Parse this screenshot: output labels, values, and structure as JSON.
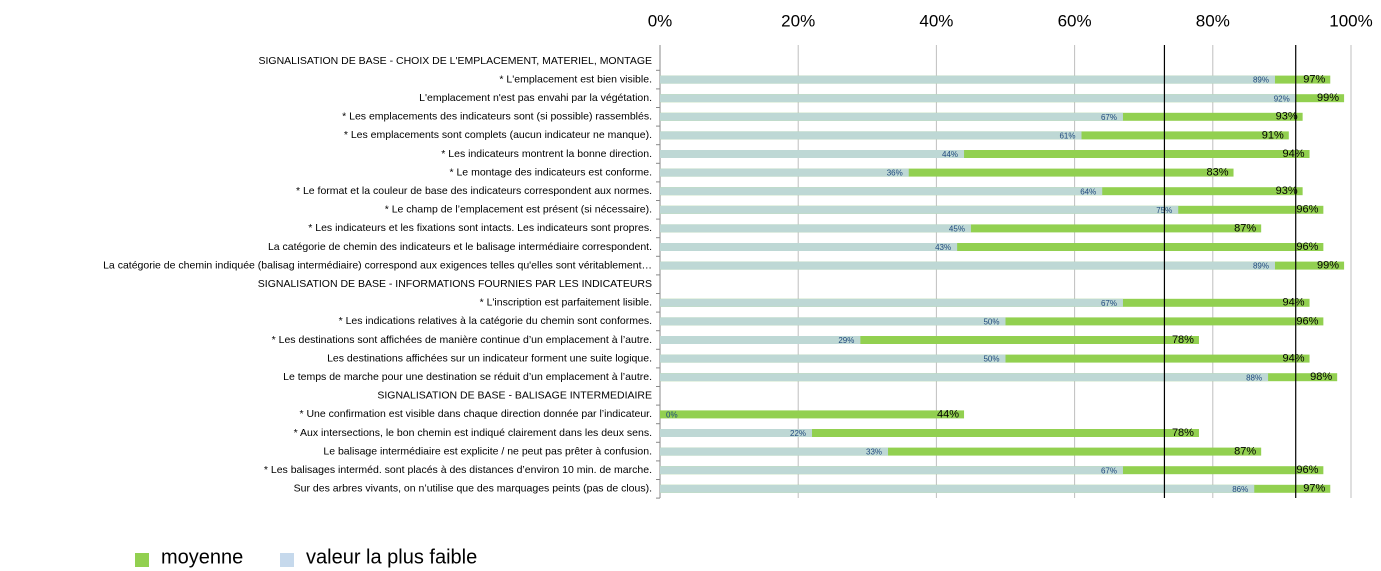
{
  "chart_data": {
    "type": "overlay_bar",
    "categories": [
      "SIGNALISATION DE BASE - CHOIX DE L'EMPLACEMENT, MATERIEL, MONTAGE",
      "* L'emplacement est bien visible.",
      "L'emplacement n'est pas envahi par la végétation.",
      "* Les emplacements des indicateurs sont (si possible) rassemblés.",
      "* Les emplacements sont complets (aucun indicateur ne manque).",
      "* Les indicateurs montrent la bonne direction.",
      "* Le montage des indicateurs est conforme.",
      "* Le format et la couleur de base des indicateurs correspondent aux normes.",
      "* Le champ de l’emplacement est présent (si nécessaire).",
      "* Les indicateurs et les fixations sont intacts. Les indicateurs sont propres.",
      "La catégorie de chemin des indicateurs et le balisage intermédiaire correspondent.",
      "La catégorie de chemin indiquée (balisag intermédiaire) correspond aux exigences telles qu'elles sont véritablement…",
      "SIGNALISATION DE BASE - INFORMATIONS FOURNIES PAR LES INDICATEURS",
      "* L'inscription est parfaitement lisible.",
      "* Les indications relatives à la catégorie du chemin sont conformes.",
      "* Les destinations sont affichées de manière continue d’un emplacement à l’autre.",
      "Les destinations affichées sur un indicateur forment une suite logique.",
      "Le temps de marche pour une destination se réduit d’un emplacement à l’autre.",
      "SIGNALISATION DE BASE - BALISAGE INTERMEDIAIRE",
      "* Une confirmation est visible dans chaque direction donnée par l’indicateur.",
      "* Aux intersections, le bon chemin est indiqué clairement dans les deux sens.",
      "Le balisage intermédiaire est explicite / ne peut pas prêter à confusion.",
      "* Les balisages interméd. sont placés à des distances d’environ 10 min. de marche.",
      "Sur des arbres vivants, on n’utilise que des marquages peints (pas de clous)."
    ],
    "series": [
      {
        "name": "moyenne",
        "color": "#92d050",
        "values": [
          null,
          97,
          99,
          93,
          91,
          94,
          83,
          93,
          96,
          87,
          96,
          99,
          null,
          94,
          96,
          78,
          94,
          98,
          null,
          44,
          78,
          87,
          96,
          97
        ],
        "value_labels": [
          null,
          "97%",
          "99%",
          "93%",
          "91%",
          "94%",
          "83%",
          "93%",
          "96%",
          "87%",
          "96%",
          "99%",
          null,
          "94%",
          "96%",
          "78%",
          "94%",
          "98%",
          null,
          "44%",
          "78%",
          "87%",
          "96%",
          "97%"
        ]
      },
      {
        "name": "valeur la plus faible",
        "color": "#c6d9ec",
        "values": [
          null,
          89,
          92,
          67,
          61,
          44,
          36,
          64,
          75,
          45,
          43,
          89,
          null,
          67,
          50,
          29,
          50,
          88,
          null,
          0,
          22,
          33,
          67,
          86
        ],
        "value_labels": [
          null,
          "89%",
          "92%",
          "67%",
          "61%",
          "44%",
          "36%",
          "64%",
          "75%",
          "45%",
          "43%",
          "89%",
          null,
          "67%",
          "50%",
          "29%",
          "50%",
          "88%",
          null,
          "0%",
          "22%",
          "33%",
          "67%",
          "86%"
        ]
      }
    ],
    "xlim": [
      0,
      100
    ],
    "xticks": [
      {
        "value": 0,
        "label": "0%"
      },
      {
        "value": 20,
        "label": "20%"
      },
      {
        "value": 40,
        "label": "40%"
      },
      {
        "value": 60,
        "label": "60%"
      },
      {
        "value": 80,
        "label": "80%"
      },
      {
        "value": 100,
        "label": "100%"
      }
    ],
    "reference_lines": [
      73,
      92
    ],
    "grid": true
  }
}
